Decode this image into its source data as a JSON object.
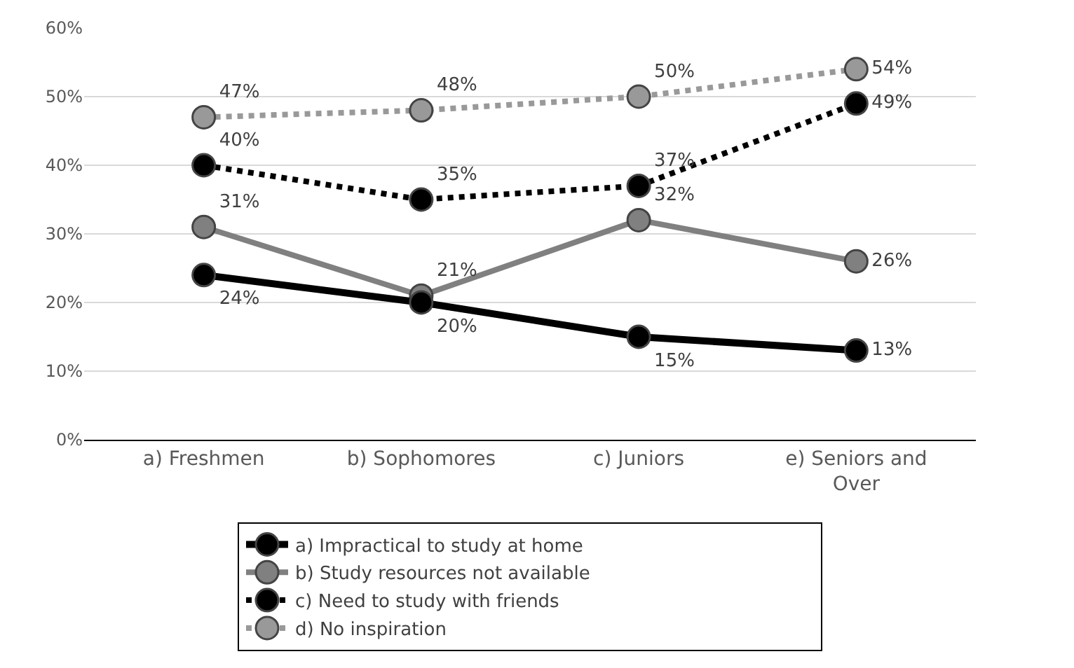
{
  "chart_data": {
    "type": "line",
    "categories": [
      "a) Freshmen",
      "b) Sophomores",
      "c) Juniors",
      "e) Seniors and Over"
    ],
    "series": [
      {
        "name": "a) Impractical to study at home",
        "color": "#000000",
        "line_style": "solid",
        "values": [
          24,
          20,
          15,
          13
        ]
      },
      {
        "name": "b) Study resources not available",
        "color": "#808080",
        "line_style": "solid",
        "values": [
          31,
          21,
          32,
          26
        ]
      },
      {
        "name": "c) Need to study with friends",
        "color": "#000000",
        "line_style": "dotted",
        "values": [
          40,
          35,
          37,
          49
        ]
      },
      {
        "name": "d) No inspiration",
        "color": "#999999",
        "line_style": "dotted",
        "values": [
          47,
          48,
          50,
          54
        ]
      }
    ],
    "ylim": [
      0,
      60
    ],
    "yticks": [
      {
        "value": 0,
        "label": "0%"
      },
      {
        "value": 10,
        "label": "10%"
      },
      {
        "value": 20,
        "label": "20%"
      },
      {
        "value": 30,
        "label": "30%"
      },
      {
        "value": 40,
        "label": "40%"
      },
      {
        "value": 50,
        "label": "50%"
      },
      {
        "value": 60,
        "label": "60%"
      }
    ],
    "value_labels": [
      [
        "24%",
        "20%",
        "15%",
        "13%"
      ],
      [
        "31%",
        "21%",
        "32%",
        "26%"
      ],
      [
        "40%",
        "35%",
        "37%",
        "49%"
      ],
      [
        "47%",
        "48%",
        "50%",
        "54%"
      ]
    ],
    "grid": "y",
    "legend": "bottom",
    "marker": "circle"
  }
}
